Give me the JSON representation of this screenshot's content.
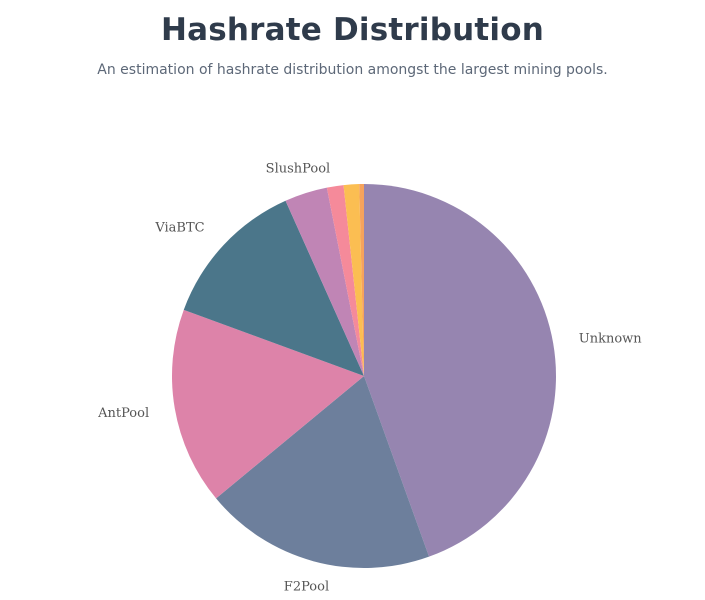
{
  "header": {
    "title": "Hashrate Distribution",
    "subtitle": "An estimation of hashrate distribution amongst the largest mining pools."
  },
  "chart_data": {
    "type": "pie",
    "title": "Hashrate Distribution",
    "subtitle": "An estimation of hashrate distribution amongst the largest mining pools.",
    "start_angle_deg": 0,
    "direction": "clockwise",
    "slices": [
      {
        "label": "Unknown",
        "value": 44.5,
        "color": "#9685b0",
        "show_label": true
      },
      {
        "label": "F2Pool",
        "value": 19.5,
        "color": "#6d7f9c",
        "show_label": true
      },
      {
        "label": "AntPool",
        "value": 16.6,
        "color": "#dd83a9",
        "show_label": true
      },
      {
        "label": "ViaBTC",
        "value": 12.7,
        "color": "#4b768a",
        "show_label": true
      },
      {
        "label": "SlushPool",
        "value": 3.6,
        "color": "#c085b5",
        "show_label": true
      },
      {
        "label": "",
        "value": 1.4,
        "color": "#f58a9a",
        "show_label": false
      },
      {
        "label": "",
        "value": 1.3,
        "color": "#fbbe52",
        "show_label": false
      },
      {
        "label": "",
        "value": 0.4,
        "color": "#f6a35c",
        "show_label": false
      }
    ]
  }
}
